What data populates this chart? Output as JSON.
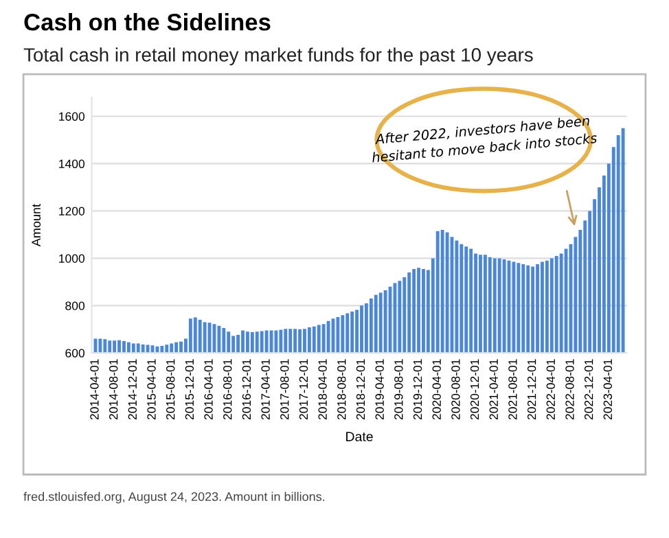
{
  "chart_data": {
    "type": "bar",
    "title": "Cash on the Sidelines",
    "subtitle": "Total cash in retail money market funds for the past 10 years",
    "xlabel": "Date",
    "ylabel": "Amount",
    "categories": [
      "2014-04-01",
      null,
      null,
      null,
      "2014-08-01",
      null,
      null,
      null,
      "2014-12-01",
      null,
      null,
      null,
      "2015-04-01",
      null,
      null,
      null,
      "2015-08-01",
      null,
      null,
      null,
      "2015-12-01",
      null,
      null,
      null,
      "2016-04-01",
      null,
      null,
      null,
      "2016-08-01",
      null,
      null,
      null,
      "2016-12-01",
      null,
      null,
      null,
      "2017-04-01",
      null,
      null,
      null,
      "2017-08-01",
      null,
      null,
      null,
      "2017-12-01",
      null,
      null,
      null,
      "2018-04-01",
      null,
      null,
      null,
      "2018-08-01",
      null,
      null,
      null,
      "2018-12-01",
      null,
      null,
      null,
      "2019-04-01",
      null,
      null,
      null,
      "2019-08-01",
      null,
      null,
      null,
      "2019-12-01",
      null,
      null,
      null,
      "2020-04-01",
      null,
      null,
      null,
      "2020-08-01",
      null,
      null,
      null,
      "2020-12-01",
      null,
      null,
      null,
      "2021-04-01",
      null,
      null,
      null,
      "2021-08-01",
      null,
      null,
      null,
      "2021-12-01",
      null,
      null,
      null,
      "2022-04-01",
      null,
      null,
      null,
      "2022-08-01",
      null,
      null,
      null,
      "2022-12-01",
      null,
      null,
      null,
      "2023-04-01",
      null,
      null,
      null
    ],
    "values": [
      660,
      660,
      658,
      652,
      652,
      654,
      650,
      645,
      640,
      640,
      636,
      634,
      632,
      628,
      630,
      635,
      640,
      645,
      648,
      660,
      745,
      750,
      740,
      730,
      728,
      722,
      715,
      705,
      690,
      672,
      676,
      695,
      690,
      688,
      690,
      692,
      695,
      695,
      695,
      698,
      702,
      702,
      702,
      700,
      702,
      708,
      712,
      718,
      722,
      735,
      745,
      752,
      760,
      768,
      775,
      782,
      800,
      810,
      830,
      845,
      855,
      865,
      880,
      895,
      905,
      920,
      940,
      955,
      960,
      955,
      950,
      1000,
      1115,
      1120,
      1110,
      1090,
      1075,
      1060,
      1050,
      1040,
      1020,
      1015,
      1015,
      1005,
      1000,
      1000,
      995,
      990,
      985,
      980,
      975,
      970,
      965,
      975,
      985,
      990,
      1000,
      1010,
      1020,
      1040,
      1060,
      1090,
      1120,
      1160,
      1200,
      1250,
      1300,
      1350,
      1400,
      1470,
      1520,
      1550
    ],
    "color": "#4a86db",
    "ylim": [
      600,
      1680
    ],
    "yticks": [
      600,
      800,
      1000,
      1200,
      1400,
      1600
    ],
    "grid": "y",
    "annotations": [
      "After 2022, investors have been hesitant to move back into stocks",
      "fred.stlouisfed.org, August 24, 2023. Amount in billions."
    ]
  }
}
